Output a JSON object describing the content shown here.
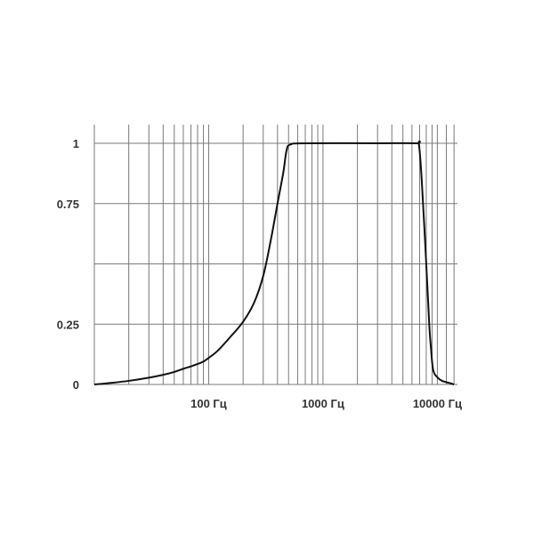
{
  "chart_data": {
    "type": "line",
    "x_scale": "log",
    "xlim": [
      10,
      15000
    ],
    "ylim": [
      0,
      1
    ],
    "grid": true,
    "x_tick_labels": [
      {
        "x": 100,
        "label": "100 Гц"
      },
      {
        "x": 1000,
        "label": "1000 Гц"
      },
      {
        "x": 10000,
        "label": "10000 Гц"
      }
    ],
    "y_tick_labels": [
      {
        "y": 0,
        "label": "0"
      },
      {
        "y": 0.25,
        "label": "0.25"
      },
      {
        "y": 0.75,
        "label": "0.75"
      },
      {
        "y": 1,
        "label": "1"
      }
    ],
    "x_gridlines": [
      20,
      30,
      40,
      50,
      60,
      70,
      80,
      90,
      100,
      200,
      300,
      400,
      500,
      600,
      700,
      800,
      900,
      1000,
      2000,
      3000,
      4000,
      5000,
      6000,
      7000,
      8000,
      9000,
      10000,
      12000,
      14000
    ],
    "y_gridlines": [
      0,
      0.25,
      0.5,
      0.75,
      1
    ],
    "series": [
      {
        "color": "#111111",
        "points": [
          [
            10,
            0.0
          ],
          [
            13,
            0.005
          ],
          [
            20,
            0.015
          ],
          [
            30,
            0.028
          ],
          [
            40,
            0.04
          ],
          [
            50,
            0.052
          ],
          [
            60,
            0.065
          ],
          [
            70,
            0.075
          ],
          [
            80,
            0.085
          ],
          [
            90,
            0.095
          ],
          [
            100,
            0.11
          ],
          [
            120,
            0.14
          ],
          [
            150,
            0.19
          ],
          [
            200,
            0.26
          ],
          [
            250,
            0.34
          ],
          [
            300,
            0.45
          ],
          [
            350,
            0.6
          ],
          [
            400,
            0.75
          ],
          [
            450,
            0.88
          ],
          [
            480,
            0.97
          ],
          [
            520,
            0.995
          ],
          [
            700,
            1.0
          ],
          [
            3000,
            1.0
          ],
          [
            6500,
            1.0
          ],
          [
            6900,
            0.995
          ],
          [
            7300,
            0.85
          ],
          [
            8000,
            0.5
          ],
          [
            8500,
            0.25
          ],
          [
            8800,
            0.15
          ],
          [
            9200,
            0.06
          ],
          [
            10000,
            0.03
          ],
          [
            11000,
            0.015
          ],
          [
            13000,
            0.005
          ],
          [
            14000,
            0.0
          ]
        ]
      }
    ]
  }
}
